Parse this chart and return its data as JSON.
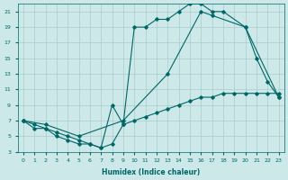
{
  "xlabel": "Humidex (Indice chaleur)",
  "bg_color": "#cce8e8",
  "grid_color": "#aacccc",
  "line_color": "#006666",
  "xlim": [
    -0.5,
    23.5
  ],
  "ylim": [
    3,
    22
  ],
  "xticks": [
    0,
    1,
    2,
    3,
    4,
    5,
    6,
    7,
    8,
    9,
    10,
    11,
    12,
    13,
    14,
    15,
    16,
    17,
    18,
    19,
    20,
    21,
    22,
    23
  ],
  "yticks": [
    3,
    5,
    7,
    9,
    11,
    13,
    15,
    17,
    19,
    21
  ],
  "line1_x": [
    0,
    1,
    2,
    3,
    4,
    5,
    6,
    7,
    8,
    9,
    10,
    11,
    12,
    13,
    14,
    15,
    16,
    17,
    18,
    20,
    21,
    22,
    23
  ],
  "line1_y": [
    7,
    6,
    6,
    5,
    4.5,
    4,
    4,
    3.5,
    4,
    6.5,
    19,
    19,
    20,
    20,
    21,
    22,
    22,
    21,
    21,
    19,
    15,
    12,
    10
  ],
  "line2_x": [
    0,
    2,
    5,
    9,
    13,
    16,
    17,
    20,
    23
  ],
  "line2_y": [
    7,
    6.5,
    5,
    7,
    13,
    21,
    20.5,
    19,
    10
  ],
  "line3_x": [
    0,
    1,
    2,
    3,
    4,
    5,
    6,
    7,
    8,
    9,
    10,
    11,
    12,
    13,
    14,
    15,
    16,
    17,
    18,
    19,
    20,
    21,
    22,
    23
  ],
  "line3_y": [
    7,
    6.5,
    6,
    5.5,
    5,
    4.5,
    4,
    3.5,
    9,
    6.5,
    7,
    7.5,
    8,
    8.5,
    9,
    9.5,
    10,
    10,
    10.5,
    10.5,
    10.5,
    10.5,
    10.5,
    10.5
  ]
}
